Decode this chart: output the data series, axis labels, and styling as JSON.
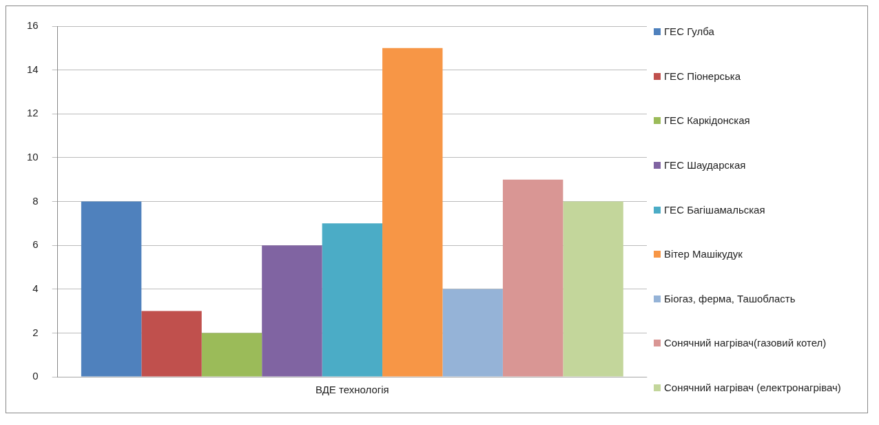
{
  "chart_data": {
    "type": "bar",
    "categories": [
      "ВДЕ технологія"
    ],
    "series": [
      {
        "name": "ГЕС Гулба",
        "color": "#4f81bd",
        "values": [
          8
        ]
      },
      {
        "name": "ГЕС Піонерська",
        "color": "#c0504d",
        "values": [
          3
        ]
      },
      {
        "name": "ГЕС Каркідонская",
        "color": "#9bbb59",
        "values": [
          2
        ]
      },
      {
        "name": "ГЕС Шаударская",
        "color": "#8064a2",
        "values": [
          6
        ]
      },
      {
        "name": "ГЕС Багішамальская",
        "color": "#4bacc6",
        "values": [
          7
        ]
      },
      {
        "name": "Вітер Машікудук",
        "color": "#f79646",
        "values": [
          15
        ]
      },
      {
        "name": "Біогаз, ферма, Ташобласть",
        "color": "#95b3d7",
        "values": [
          4
        ]
      },
      {
        "name": "Сонячний нагрівач(газовий котел)",
        "color": "#d99694",
        "values": [
          9
        ]
      },
      {
        "name": "Сонячний нагрівач (електронагрівач)",
        "color": "#c3d69b",
        "values": [
          8
        ]
      }
    ],
    "ylim": [
      0,
      16
    ],
    "yticks": [
      0,
      2,
      4,
      6,
      8,
      10,
      12,
      14,
      16
    ],
    "grid": "y",
    "legend": "right"
  }
}
